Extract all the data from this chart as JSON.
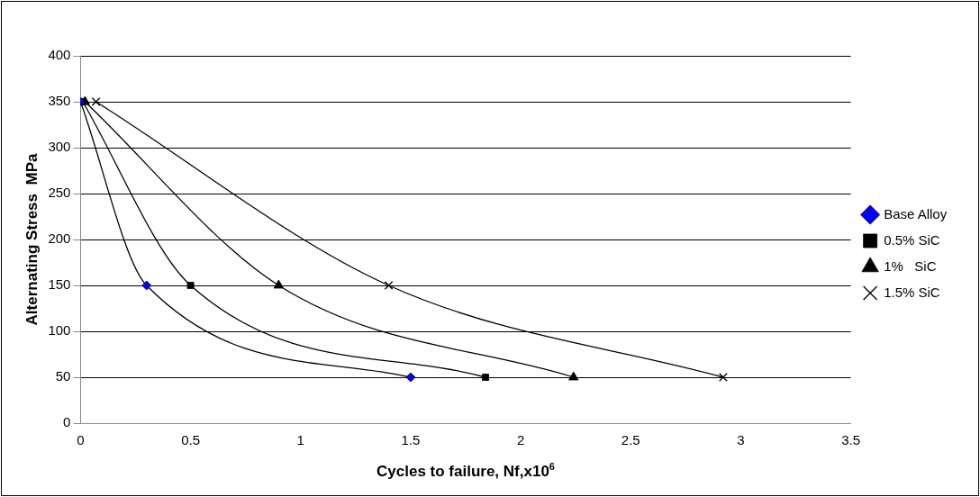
{
  "chart_data": {
    "type": "line",
    "xlabel": "Cycles to failure, Nf,x10$^{6}$",
    "ylabel": "Alternating Stress  MPa",
    "xlim": [
      0,
      3.5
    ],
    "ylim": [
      0,
      400
    ],
    "xticks": [
      0,
      0.5,
      1,
      1.5,
      2,
      2.5,
      3,
      3.5
    ],
    "yticks": [
      0,
      50,
      100,
      150,
      200,
      250,
      300,
      350,
      400
    ],
    "grid": "y",
    "legend": "right",
    "series": [
      {
        "name": "Base Alloy",
        "color": "#0000ff",
        "marker": "diamond",
        "x": [
          0,
          0.3,
          1.5
        ],
        "values": [
          350,
          150,
          50
        ]
      },
      {
        "name": "0.5% SiC",
        "color": "#000000",
        "marker": "square",
        "x": [
          0.01,
          0.5,
          1.84
        ],
        "values": [
          350,
          150,
          50
        ]
      },
      {
        "name": "1%   SiC",
        "color": "#000000",
        "marker": "triangle",
        "x": [
          0.02,
          0.9,
          2.24
        ],
        "values": [
          350,
          150,
          50
        ]
      },
      {
        "name": "1.5% SiC",
        "color": "#000000",
        "marker": "cross",
        "x": [
          0.07,
          1.4,
          2.92
        ],
        "values": [
          350,
          150,
          50
        ]
      }
    ]
  }
}
